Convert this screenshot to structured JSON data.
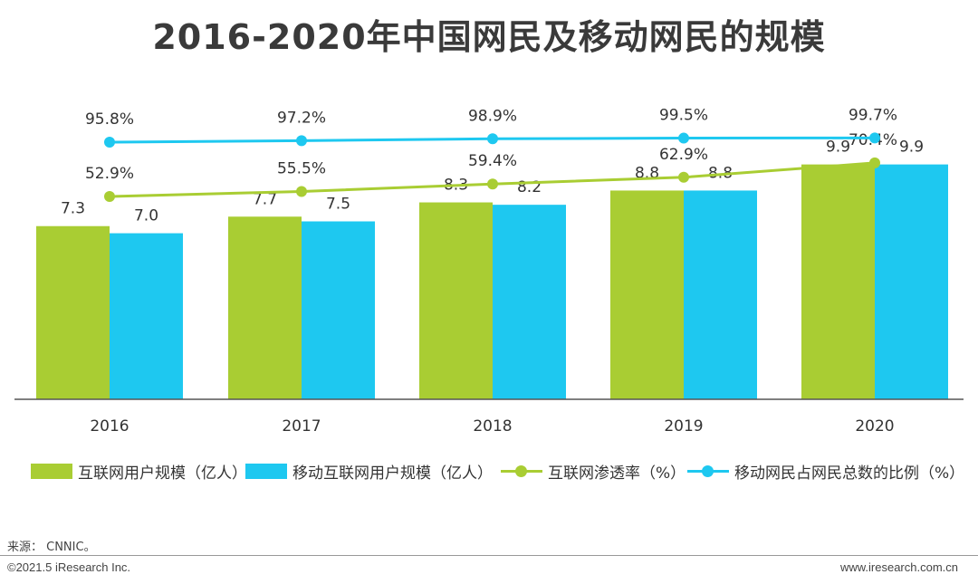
{
  "title": "2016-2020年中国网民及移动网民的规模",
  "colors": {
    "green": "#A9CD33",
    "cyan": "#1EC8F0",
    "axis": "#555555"
  },
  "chart_data": {
    "type": "bar",
    "categories": [
      "2016",
      "2017",
      "2018",
      "2019",
      "2020"
    ],
    "series": [
      {
        "name": "互联网用户规模（亿人）",
        "type": "bar",
        "color": "#A9CD33",
        "values": [
          7.3,
          7.7,
          8.3,
          8.8,
          9.9
        ],
        "labels": [
          "7.3",
          "7.7",
          "8.3",
          "8.8",
          "9.9"
        ]
      },
      {
        "name": "移动互联网用户规模（亿人）",
        "type": "bar",
        "color": "#1EC8F0",
        "values": [
          7.0,
          7.5,
          8.2,
          8.8,
          9.9
        ],
        "labels": [
          "7.0",
          "7.5",
          "8.2",
          "8.8",
          "9.9"
        ]
      },
      {
        "name": "互联网渗透率（%）",
        "type": "line",
        "color": "#A9CD33",
        "values": [
          52.9,
          55.5,
          59.4,
          62.9,
          70.4
        ],
        "labels": [
          "52.9%",
          "55.5%",
          "59.4%",
          "62.9%",
          "70.4%"
        ]
      },
      {
        "name": "移动网民占网民总数的比例（%）",
        "type": "line",
        "color": "#1EC8F0",
        "values": [
          95.8,
          97.2,
          98.9,
          99.5,
          99.7
        ],
        "labels": [
          "95.8%",
          "97.2%",
          "98.9%",
          "99.5%",
          "99.7%"
        ]
      }
    ],
    "grid": false,
    "legend": "bottom"
  },
  "footer": {
    "source": "来源： CNNIC。",
    "copyright": "©2021.5 iResearch Inc.",
    "url": "www.iresearch.com.cn"
  }
}
